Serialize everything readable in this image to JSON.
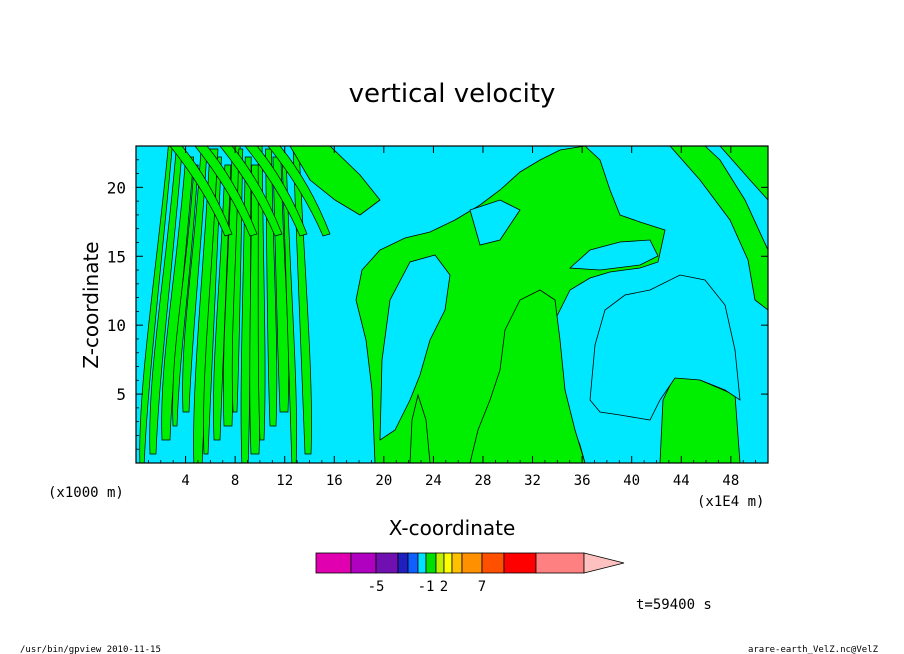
{
  "chart_data": {
    "type": "heatmap",
    "title": "vertical velocity",
    "xlabel": "X-coordinate",
    "ylabel": "Z-coordinate",
    "x_unit": "(x1E4 m)",
    "y_unit": "(x1000 m)",
    "xlim": [
      0,
      51
    ],
    "ylim": [
      0,
      23
    ],
    "x_ticks": [
      "4",
      "8",
      "12",
      "16",
      "20",
      "24",
      "28",
      "32",
      "36",
      "40",
      "44",
      "48"
    ],
    "y_ticks": [
      "5",
      "10",
      "15",
      "20"
    ],
    "grid": false,
    "time_label": "t=59400 s",
    "colorbar": {
      "labels": [
        "-5",
        "-1",
        "2",
        "7"
      ],
      "colors": [
        "#e000b0",
        "#b000c0",
        "#7010b0",
        "#2020c0",
        "#1060ff",
        "#00e0ff",
        "#00e000",
        "#c0f000",
        "#ffff00",
        "#ffc000",
        "#ff9000",
        "#ff5000",
        "#ff0000",
        "#ff8080",
        "#ffc0c0"
      ],
      "extend": "max"
    },
    "field_colors": {
      "positive": "#00ee00",
      "negative": "#00e8ff"
    }
  },
  "footer": {
    "left": "/usr/bin/gpview   2010-11-15",
    "right": "arare-earth_VelZ.nc@VelZ"
  }
}
